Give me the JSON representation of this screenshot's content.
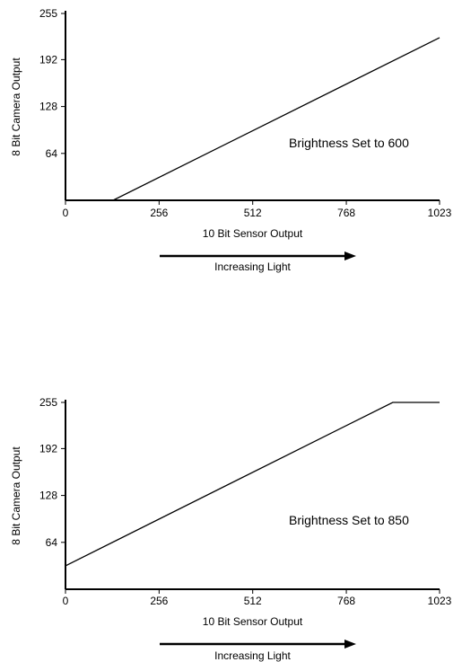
{
  "charts": [
    {
      "annotation": "Brightness Set to 600",
      "chart_data": {
        "type": "line",
        "xlabel": "10 Bit Sensor Output",
        "ylabel": "8 Bit Camera Output",
        "xlim": [
          0,
          1023
        ],
        "ylim": [
          0,
          255
        ],
        "xticks": [
          0,
          256,
          512,
          768,
          1023
        ],
        "yticks": [
          64,
          128,
          192,
          255
        ],
        "series": [
          {
            "x": [
              130,
              1023
            ],
            "y": [
              0,
              222
            ]
          }
        ],
        "annotation": "Brightness Set to 600",
        "arrow_label": "Increasing Light"
      },
      "arrow_label": "Increasing Light"
    },
    {
      "annotation": "Brightness Set to 850",
      "chart_data": {
        "type": "line",
        "xlabel": "10 Bit Sensor Output",
        "ylabel": "8 Bit Camera Output",
        "xlim": [
          0,
          1023
        ],
        "ylim": [
          0,
          255
        ],
        "xticks": [
          0,
          256,
          512,
          768,
          1023
        ],
        "yticks": [
          64,
          128,
          192,
          255
        ],
        "series": [
          {
            "x": [
              0,
              895,
              1023
            ],
            "y": [
              32,
              255,
              255
            ]
          }
        ],
        "annotation": "Brightness Set to 850",
        "arrow_label": "Increasing Light"
      },
      "arrow_label": "Increasing Light"
    }
  ]
}
